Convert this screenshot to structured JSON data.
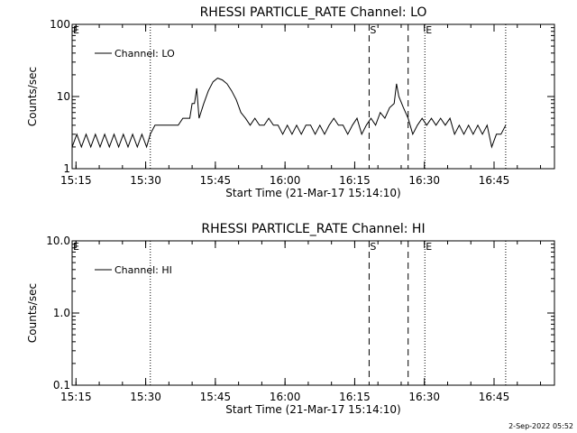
{
  "footer": "2-Sep-2022 05:52",
  "chart_data": [
    {
      "type": "line",
      "title": "RHESSI PARTICLE_RATE Channel: LO",
      "xlabel": "Start Time (21-Mar-17 15:14:10)",
      "ylabel": "Counts/sec",
      "yscale": "log",
      "ylim": [
        1,
        100
      ],
      "yticks": [
        {
          "value": 1,
          "label": "1"
        },
        {
          "value": 10,
          "label": "10"
        },
        {
          "value": 100,
          "label": "100"
        }
      ],
      "xlim": [
        15.2361,
        16.9667
      ],
      "xticks": [
        {
          "value": 15.25,
          "label": "15:15"
        },
        {
          "value": 15.5,
          "label": "15:30"
        },
        {
          "value": 15.75,
          "label": "15:45"
        },
        {
          "value": 16.0,
          "label": "16:00"
        },
        {
          "value": 16.25,
          "label": "16:15"
        },
        {
          "value": 16.5,
          "label": "16:30"
        },
        {
          "value": 16.75,
          "label": "16:45"
        }
      ],
      "legend": {
        "entry": "Channel: LO",
        "placement": "top-left"
      },
      "markers": [
        {
          "label": "E",
          "x": 15.2361,
          "style": "dotted"
        },
        {
          "label": "",
          "x": 15.5167,
          "style": "dotted"
        },
        {
          "label": "S",
          "x": 16.3017,
          "style": "dashed"
        },
        {
          "label": "",
          "x": 16.4417,
          "style": "dashed"
        },
        {
          "label": "E",
          "x": 16.5017,
          "style": "dotted"
        },
        {
          "label": "",
          "x": 16.7917,
          "style": "dotted"
        }
      ],
      "series": [
        {
          "name": "Channel: LO",
          "segments": [
            {
              "x0": 15.2361,
              "x1": 15.5167,
              "pattern": "alternating",
              "values": [
                2,
                3
              ],
              "step": 0.0167
            },
            {
              "x0": 15.5167,
              "x1": 16.7917,
              "pattern": "points"
            }
          ],
          "points": [
            [
              15.5167,
              3
            ],
            [
              15.5333,
              4
            ],
            [
              15.6167,
              4
            ],
            [
              15.6333,
              5
            ],
            [
              15.6583,
              5
            ],
            [
              15.6667,
              8
            ],
            [
              15.675,
              8
            ],
            [
              15.6833,
              13
            ],
            [
              15.6917,
              5
            ],
            [
              15.7083,
              8
            ],
            [
              15.725,
              12
            ],
            [
              15.7417,
              16
            ],
            [
              15.7583,
              18
            ],
            [
              15.775,
              17
            ],
            [
              15.7917,
              15
            ],
            [
              15.8083,
              12
            ],
            [
              15.825,
              9
            ],
            [
              15.8417,
              6
            ],
            [
              15.8583,
              5
            ],
            [
              15.875,
              4
            ],
            [
              15.8917,
              5
            ],
            [
              15.9083,
              4
            ],
            [
              15.925,
              4
            ],
            [
              15.9417,
              5
            ],
            [
              15.9583,
              4
            ],
            [
              15.975,
              4
            ],
            [
              15.9917,
              3
            ],
            [
              16.0083,
              4
            ],
            [
              16.025,
              3
            ],
            [
              16.0417,
              4
            ],
            [
              16.0583,
              3
            ],
            [
              16.075,
              4
            ],
            [
              16.0917,
              4
            ],
            [
              16.1083,
              3
            ],
            [
              16.125,
              4
            ],
            [
              16.1417,
              3
            ],
            [
              16.1583,
              4
            ],
            [
              16.175,
              5
            ],
            [
              16.1917,
              4
            ],
            [
              16.2083,
              4
            ],
            [
              16.225,
              3
            ],
            [
              16.2417,
              4
            ],
            [
              16.2583,
              5
            ],
            [
              16.275,
              3
            ],
            [
              16.2917,
              4
            ],
            [
              16.3083,
              5
            ],
            [
              16.325,
              4
            ],
            [
              16.3417,
              6
            ],
            [
              16.3583,
              5
            ],
            [
              16.375,
              7
            ],
            [
              16.3917,
              8
            ],
            [
              16.4,
              15
            ],
            [
              16.4083,
              10
            ],
            [
              16.425,
              7
            ],
            [
              16.4417,
              5
            ],
            [
              16.4583,
              3
            ],
            [
              16.475,
              4
            ],
            [
              16.4917,
              5
            ],
            [
              16.5083,
              4
            ],
            [
              16.525,
              5
            ],
            [
              16.5417,
              4
            ],
            [
              16.5583,
              5
            ],
            [
              16.575,
              4
            ],
            [
              16.5917,
              5
            ],
            [
              16.6083,
              3
            ],
            [
              16.625,
              4
            ],
            [
              16.6417,
              3
            ],
            [
              16.6583,
              4
            ],
            [
              16.675,
              3
            ],
            [
              16.6917,
              4
            ],
            [
              16.7083,
              3
            ],
            [
              16.725,
              4
            ],
            [
              16.7417,
              2
            ],
            [
              16.7583,
              3
            ],
            [
              16.775,
              3
            ],
            [
              16.7917,
              4
            ]
          ]
        }
      ]
    },
    {
      "type": "line",
      "title": "RHESSI PARTICLE_RATE Channel: HI",
      "xlabel": "Start Time (21-Mar-17 15:14:10)",
      "ylabel": "Counts/sec",
      "yscale": "log",
      "ylim": [
        0.1,
        10
      ],
      "yticks": [
        {
          "value": 0.1,
          "label": "0.1"
        },
        {
          "value": 1,
          "label": "1.0"
        },
        {
          "value": 10,
          "label": "10.0"
        }
      ],
      "xlim": [
        15.2361,
        16.9667
      ],
      "xticks": [
        {
          "value": 15.25,
          "label": "15:15"
        },
        {
          "value": 15.5,
          "label": "15:30"
        },
        {
          "value": 15.75,
          "label": "15:45"
        },
        {
          "value": 16.0,
          "label": "16:00"
        },
        {
          "value": 16.25,
          "label": "16:15"
        },
        {
          "value": 16.5,
          "label": "16:30"
        },
        {
          "value": 16.75,
          "label": "16:45"
        }
      ],
      "legend": {
        "entry": "Channel: HI",
        "placement": "top-left"
      },
      "markers": [
        {
          "label": "E",
          "x": 15.2361,
          "style": "dotted"
        },
        {
          "label": "",
          "x": 15.5167,
          "style": "dotted"
        },
        {
          "label": "S",
          "x": 16.3017,
          "style": "dashed"
        },
        {
          "label": "",
          "x": 16.4417,
          "style": "dashed"
        },
        {
          "label": "E",
          "x": 16.5017,
          "style": "dotted"
        },
        {
          "label": "",
          "x": 16.7917,
          "style": "dotted"
        }
      ],
      "series": [
        {
          "name": "Channel: HI",
          "segments": [],
          "points": []
        }
      ]
    }
  ]
}
